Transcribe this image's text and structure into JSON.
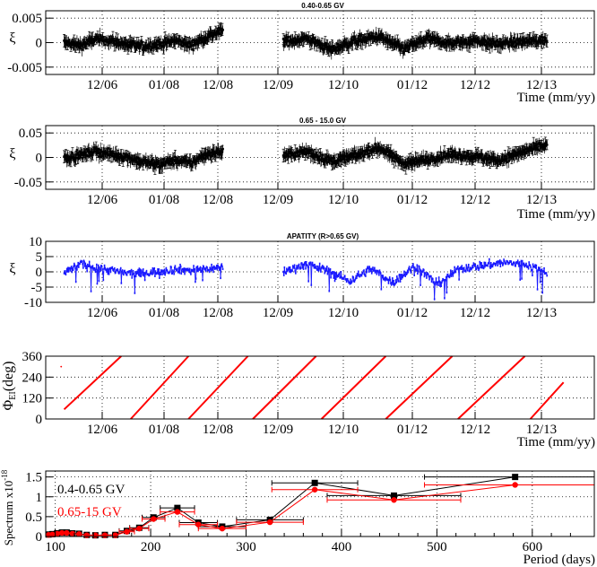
{
  "chart_data": [
    {
      "type": "scatter",
      "title": "0.40-0.65 GV",
      "xlabel": "Time (mm/yy)",
      "ylabel": "ξ",
      "ylim": [
        -0.0065,
        0.0065
      ],
      "yticks": [
        -0.005,
        0,
        0.005
      ],
      "ytick_labels": [
        "-0.005",
        "0",
        "0.005"
      ],
      "xticks": [
        "12/06",
        "01/08",
        "12/08",
        "12/09",
        "12/10",
        "01/12",
        "12/12",
        "12/13"
      ],
      "grid": true,
      "color": "#000000",
      "error_bars": true,
      "segments": [
        {
          "start": "2006-04",
          "end": "2009-01",
          "levels": [
            0,
            -0.0006,
            0.0007,
            0.0003,
            -0.0004,
            -0.0008,
            -0.0003,
            0.0004,
            -0.0005,
            0.0012,
            0.0025
          ]
        },
        {
          "start": "2010-01",
          "end": "2014-01",
          "levels": [
            0.0002,
            0.0008,
            -0.0015,
            0.0004,
            0.0012,
            -0.0013,
            0.0008,
            -0.0002,
            0.0004,
            -0.0003,
            0.0002,
            0.0005
          ]
        }
      ]
    },
    {
      "type": "scatter",
      "title": "0.65 - 15.0 GV",
      "xlabel": "Time (mm/yy)",
      "ylabel": "ξ",
      "ylim": [
        -0.065,
        0.065
      ],
      "yticks": [
        -0.05,
        0,
        0.05
      ],
      "ytick_labels": [
        "-0.05",
        "0",
        "0.05"
      ],
      "xticks": [
        "12/06",
        "01/08",
        "12/08",
        "12/09",
        "12/10",
        "01/12",
        "12/12",
        "12/13"
      ],
      "grid": true,
      "color": "#000000",
      "error_bars": true,
      "segments": [
        {
          "start": "2006-04",
          "end": "2009-01",
          "levels": [
            0,
            0.004,
            0.013,
            0.006,
            0,
            -0.01,
            -0.014,
            -0.006,
            -0.012,
            0.008,
            0.012
          ]
        },
        {
          "start": "2010-01",
          "end": "2014-01",
          "levels": [
            0.004,
            0.012,
            -0.008,
            0.004,
            0.02,
            -0.012,
            -0.004,
            0.006,
            0.002,
            -0.006,
            0.012,
            0.025
          ]
        }
      ]
    },
    {
      "type": "scatter",
      "title": "APATITY (R>0.65 GV)",
      "xlabel": "",
      "ylabel": "ξ",
      "ylim": [
        -10,
        10
      ],
      "yticks": [
        -10,
        -5,
        0,
        5,
        10
      ],
      "ytick_labels": [
        "-10",
        "-5",
        "0",
        "5",
        "10"
      ],
      "xticks": [
        "12/06",
        "01/08",
        "12/08",
        "12/09",
        "12/10",
        "01/12",
        "12/12",
        "12/13"
      ],
      "grid": true,
      "color": "#1a1aff",
      "error_bars": false,
      "segments": [
        {
          "start": "2006-04",
          "end": "2009-01",
          "levels": [
            -0.5,
            2.5,
            1.5,
            0.5,
            -0.5,
            -0.5,
            0.2,
            0.8,
            0.5,
            1.0,
            1.5
          ]
        },
        {
          "start": "2010-01",
          "end": "2014-01",
          "levels": [
            0,
            2.5,
            0.5,
            -3,
            1,
            -3.5,
            2,
            -4,
            1,
            2,
            3,
            2.5,
            0
          ]
        }
      ]
    },
    {
      "type": "line",
      "title": "",
      "xlabel": "Time (mm/yy)",
      "ylabel": "ΦEI (deg)",
      "ylabel_main": "Φ",
      "ylabel_sub": "EI",
      "ylabel_unit": "(deg)",
      "ylim": [
        0,
        360
      ],
      "yticks": [
        0,
        120,
        240,
        360
      ],
      "ytick_labels": [
        "0",
        "120",
        "240",
        "360"
      ],
      "xticks": [
        "12/06",
        "01/08",
        "12/08",
        "12/09",
        "12/10",
        "01/12",
        "12/12",
        "12/13"
      ],
      "grid": true,
      "color": "#ff0000",
      "isolated_point": {
        "x": "2006-03",
        "y": 300
      },
      "lines": [
        [
          [
            "2006-04",
            55
          ],
          [
            "2007-04",
            360
          ]
        ],
        [
          [
            "2007-06",
            0
          ],
          [
            "2008-06",
            360
          ]
        ],
        [
          [
            "2008-06",
            0
          ],
          [
            "2009-06",
            360
          ]
        ],
        [
          [
            "2009-07",
            0
          ],
          [
            "2010-07",
            360
          ]
        ],
        [
          [
            "2010-08",
            0
          ],
          [
            "2011-08",
            360
          ]
        ],
        [
          [
            "2011-08",
            0
          ],
          [
            "2012-08",
            360
          ]
        ],
        [
          [
            "2012-09",
            0
          ],
          [
            "2013-09",
            360
          ]
        ],
        [
          [
            "2013-10",
            0
          ],
          [
            "2014-04",
            210
          ]
        ]
      ]
    },
    {
      "type": "line",
      "title": "",
      "xlabel": "Period (days)",
      "ylabel": "Spectrum x10",
      "ylabel_exp": "-18",
      "xlim": [
        90,
        665
      ],
      "ylim": [
        0,
        1.65
      ],
      "xticks": [
        100,
        200,
        300,
        400,
        500,
        600
      ],
      "yticks": [
        0,
        0.5,
        1,
        1.5
      ],
      "ytick_labels": [
        "0",
        "0.5",
        "1",
        "1.5"
      ],
      "grid": true,
      "series": [
        {
          "name": "0.4-0.65 GV",
          "color": "#000000",
          "marker": "square",
          "x": [
            93,
            97,
            102,
            107,
            112,
            118,
            125,
            133,
            142,
            152,
            163,
            175,
            188,
            203,
            228,
            250,
            275,
            325,
            372,
            455,
            582
          ],
          "y": [
            0.05,
            0.06,
            0.08,
            0.1,
            0.1,
            0.08,
            0.07,
            0.04,
            0.03,
            0.04,
            0.04,
            0.14,
            0.22,
            0.48,
            0.72,
            0.35,
            0.25,
            0.42,
            1.35,
            1.03,
            1.5
          ],
          "xerr": [
            0,
            0,
            0,
            0,
            0,
            0,
            0,
            0,
            0,
            0,
            0,
            8,
            10,
            12,
            18,
            20,
            25,
            35,
            45,
            70,
            95
          ]
        },
        {
          "name": "0.65-15 GV",
          "color": "#ff0000",
          "marker": "circle",
          "x": [
            93,
            97,
            102,
            107,
            112,
            118,
            125,
            133,
            142,
            152,
            163,
            175,
            188,
            203,
            228,
            250,
            275,
            325,
            372,
            455,
            582
          ],
          "y": [
            0.04,
            0.05,
            0.07,
            0.09,
            0.09,
            0.07,
            0.06,
            0.03,
            0.03,
            0.03,
            0.03,
            0.12,
            0.2,
            0.44,
            0.62,
            0.3,
            0.2,
            0.36,
            1.18,
            0.92,
            1.3
          ],
          "xerr": [
            0,
            0,
            0,
            0,
            0,
            0,
            0,
            0,
            0,
            0,
            0,
            8,
            10,
            12,
            18,
            20,
            25,
            35,
            45,
            70,
            95
          ]
        }
      ]
    }
  ]
}
